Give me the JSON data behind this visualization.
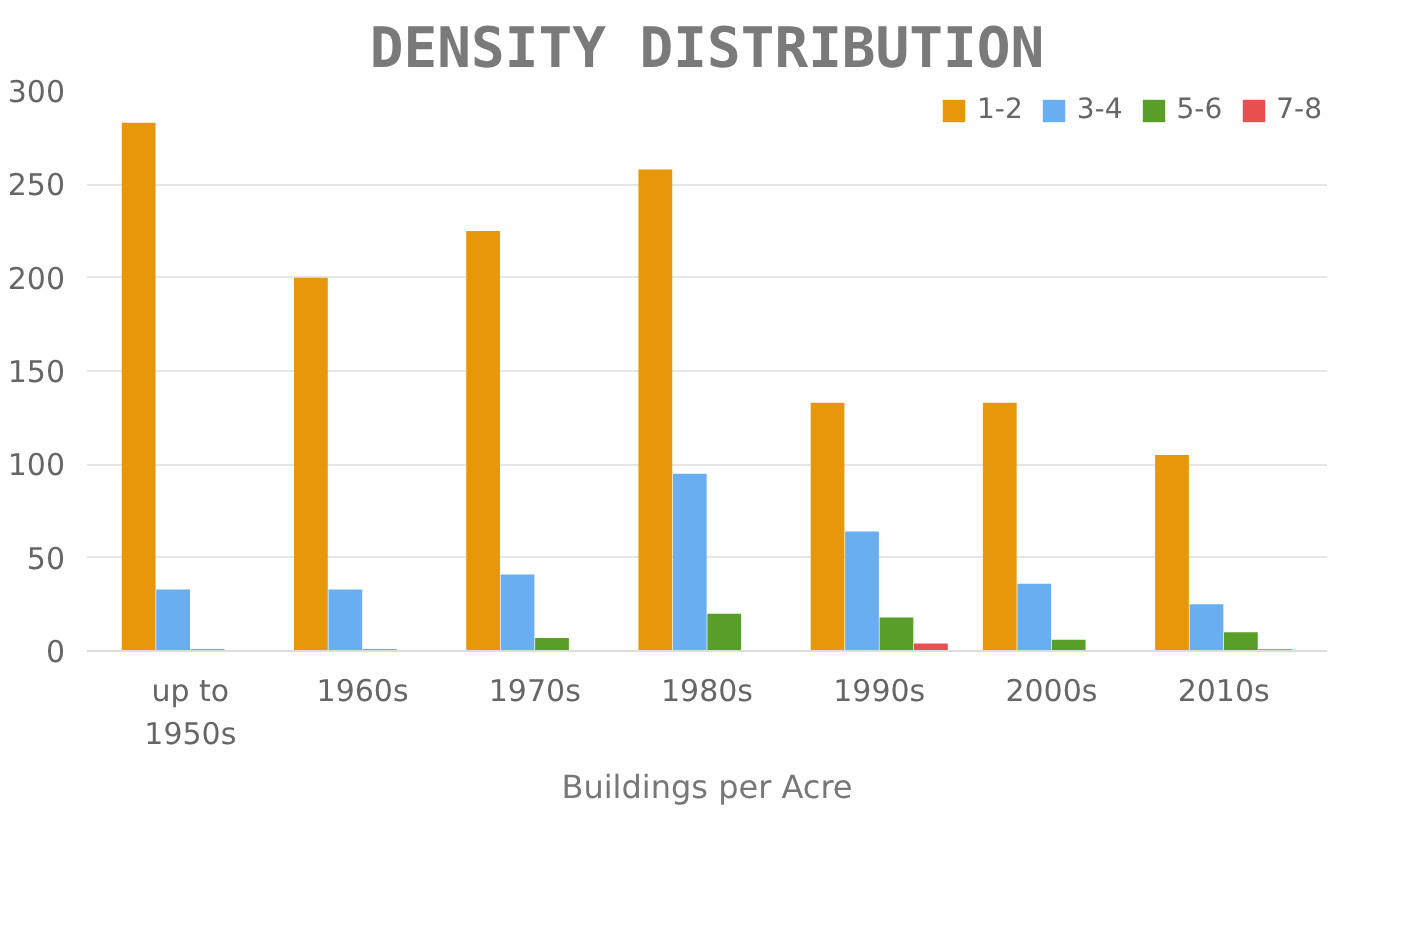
{
  "chart_data": {
    "type": "bar",
    "title": "DENSITY DISTRIBUTION",
    "xlabel": "Buildings per Acre",
    "categories": [
      "up to\n1950s",
      "1960s",
      "1970s",
      "1980s",
      "1990s",
      "2000s",
      "2010s"
    ],
    "series": [
      {
        "name": "1-2",
        "color": "#e8960a",
        "values": [
          283,
          200,
          225,
          258,
          133,
          133,
          105
        ]
      },
      {
        "name": "3-4",
        "color": "#6aaef2",
        "values": [
          33,
          33,
          41,
          95,
          64,
          36,
          25
        ]
      },
      {
        "name": "5-6",
        "color": "#5a9e2a",
        "values": [
          1,
          1,
          7,
          20,
          18,
          6,
          10
        ]
      },
      {
        "name": "7-8",
        "color": "#e85050",
        "values": [
          0,
          0,
          0,
          0,
          4,
          0,
          1
        ]
      }
    ],
    "ylim": [
      0,
      300
    ],
    "yticks": [
      0,
      50,
      100,
      150,
      200,
      250,
      300
    ],
    "grid": "y",
    "legend": "top right"
  }
}
